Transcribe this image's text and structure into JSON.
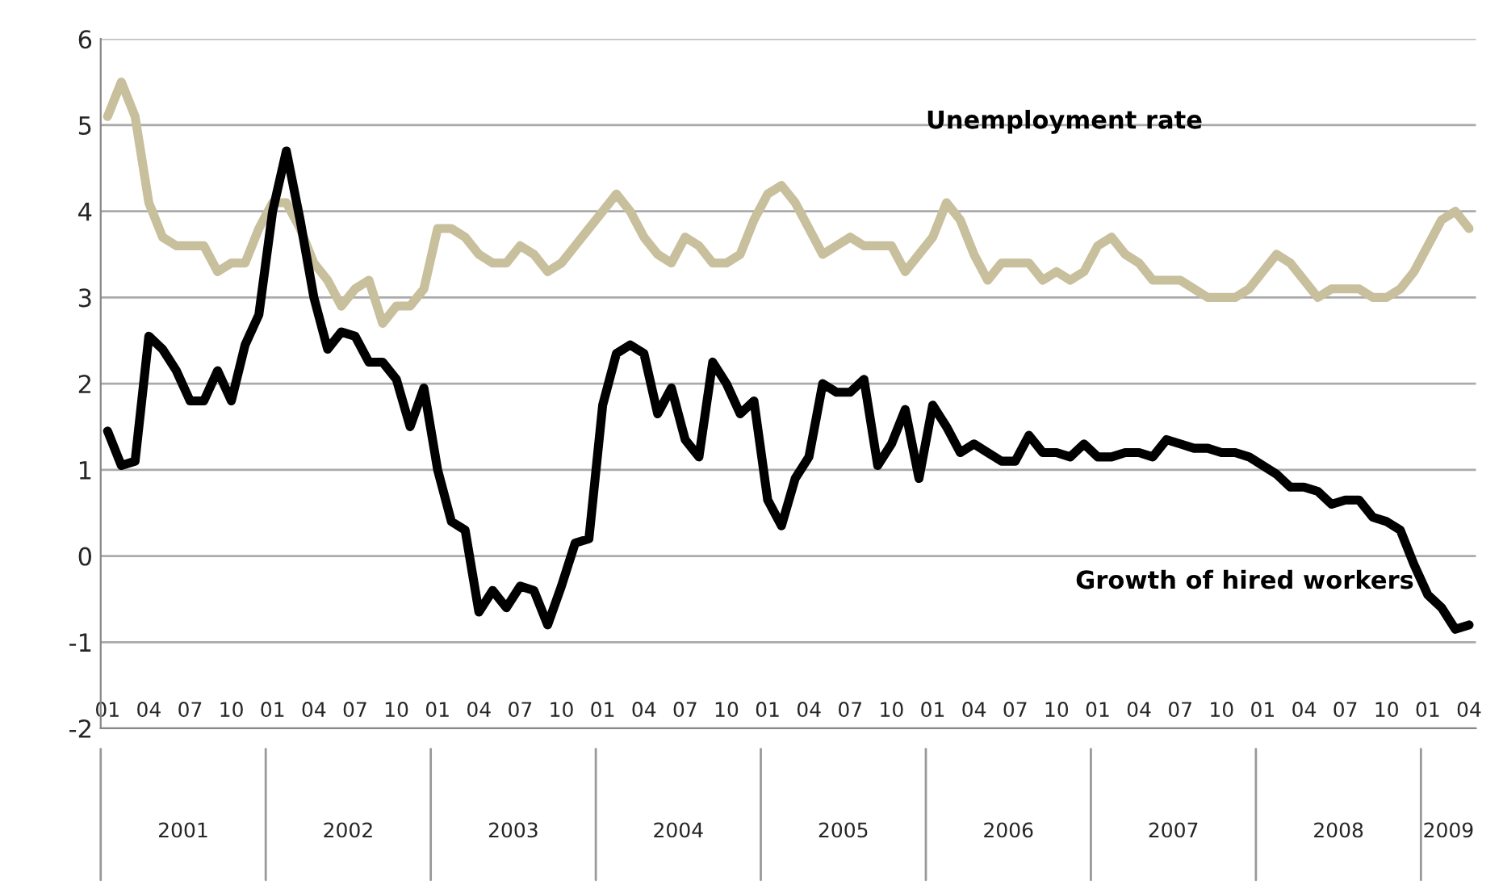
{
  "chart_data": {
    "type": "line",
    "categories": [
      "01",
      null,
      null,
      "04",
      null,
      null,
      "07",
      null,
      null,
      "10",
      null,
      null,
      "01",
      null,
      null,
      "04",
      null,
      null,
      "07",
      null,
      null,
      "10",
      null,
      null,
      "01",
      null,
      null,
      "04",
      null,
      null,
      "07",
      null,
      null,
      "10",
      null,
      null,
      "01",
      null,
      null,
      "04",
      null,
      null,
      "07",
      null,
      null,
      "10",
      null,
      null,
      "01",
      null,
      null,
      "04",
      null,
      null,
      "07",
      null,
      null,
      "10",
      null,
      null,
      "01",
      null,
      null,
      "04",
      null,
      null,
      "07",
      null,
      null,
      "10",
      null,
      null,
      "01",
      null,
      null,
      "04",
      null,
      null,
      "07",
      null,
      null,
      "10",
      null,
      null,
      "01",
      null,
      null,
      "04",
      null,
      null,
      "07",
      null,
      null,
      "10",
      null,
      null,
      "01",
      null,
      null,
      "04"
    ],
    "series": [
      {
        "name": "Unemployment rate",
        "color": "#c8bf9c",
        "values": [
          5.1,
          5.5,
          5.1,
          4.1,
          3.7,
          3.6,
          3.6,
          3.6,
          3.3,
          3.4,
          3.4,
          3.8,
          4.1,
          4.1,
          3.8,
          3.4,
          3.2,
          2.9,
          3.1,
          3.2,
          2.7,
          2.9,
          2.9,
          3.1,
          3.8,
          3.8,
          3.7,
          3.5,
          3.4,
          3.4,
          3.6,
          3.5,
          3.3,
          3.4,
          3.6,
          3.8,
          4.0,
          4.2,
          4.0,
          3.7,
          3.5,
          3.4,
          3.7,
          3.6,
          3.4,
          3.4,
          3.5,
          3.9,
          4.2,
          4.3,
          4.1,
          3.8,
          3.5,
          3.6,
          3.7,
          3.6,
          3.6,
          3.6,
          3.3,
          3.5,
          3.7,
          4.1,
          3.9,
          3.5,
          3.2,
          3.4,
          3.4,
          3.4,
          3.2,
          3.3,
          3.2,
          3.3,
          3.6,
          3.7,
          3.5,
          3.4,
          3.2,
          3.2,
          3.2,
          3.1,
          3.0,
          3.0,
          3.0,
          3.1,
          3.3,
          3.5,
          3.4,
          3.2,
          3.0,
          3.1,
          3.1,
          3.1,
          3.0,
          3.0,
          3.1,
          3.3,
          3.6,
          3.9,
          4.0,
          3.8
        ]
      },
      {
        "name": "Growth of hired workers",
        "color": "#000000",
        "values": [
          1.45,
          1.05,
          1.1,
          2.55,
          2.4,
          2.15,
          1.8,
          1.8,
          2.15,
          1.8,
          2.45,
          2.8,
          4.0,
          4.7,
          3.9,
          3.0,
          2.4,
          2.6,
          2.55,
          2.25,
          2.25,
          2.05,
          1.5,
          1.95,
          1.0,
          0.4,
          0.3,
          -0.65,
          -0.4,
          -0.6,
          -0.35,
          -0.4,
          -0.8,
          -0.35,
          0.15,
          0.2,
          1.75,
          2.35,
          2.45,
          2.35,
          1.65,
          1.95,
          1.35,
          1.15,
          2.25,
          2.0,
          1.65,
          1.8,
          0.65,
          0.35,
          0.9,
          1.15,
          2.0,
          1.9,
          1.9,
          2.05,
          1.05,
          1.3,
          1.7,
          0.9,
          1.75,
          1.5,
          1.2,
          1.3,
          1.2,
          1.1,
          1.1,
          1.4,
          1.2,
          1.2,
          1.15,
          1.3,
          1.15,
          1.15,
          1.2,
          1.2,
          1.15,
          1.35,
          1.3,
          1.25,
          1.25,
          1.2,
          1.2,
          1.15,
          1.05,
          0.95,
          0.8,
          0.8,
          0.75,
          0.6,
          0.65,
          0.65,
          0.45,
          0.4,
          0.3,
          -0.1,
          -0.45,
          -0.6,
          -0.85,
          -0.8
        ]
      }
    ],
    "annotations": [
      "2001",
      "2002",
      "2003",
      "2004",
      "2005",
      "2006",
      "2007",
      "2008",
      "2009"
    ],
    "ylim": [
      -2,
      6
    ],
    "yticks": [
      -2,
      -1,
      0,
      1,
      2,
      3,
      4,
      5,
      6
    ],
    "grid": "y",
    "legend": false
  }
}
